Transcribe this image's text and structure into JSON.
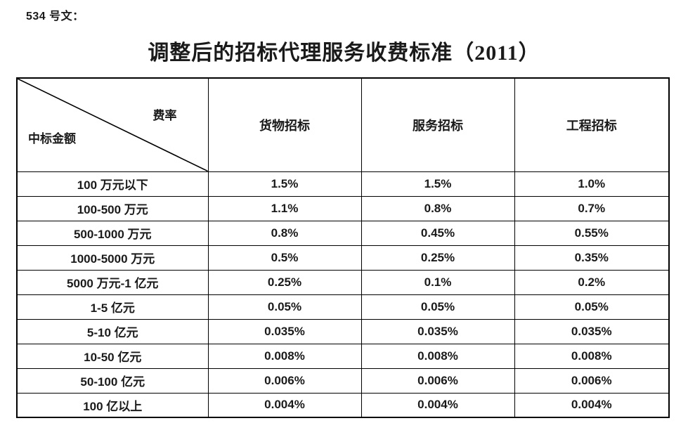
{
  "page": {
    "doc_label": "534 号文：",
    "title": "调整后的招标代理服务收费标准（2011）"
  },
  "table": {
    "corner": {
      "top_right_label": "费率",
      "bottom_left_label": "中标金额"
    },
    "column_headers": [
      "货物招标",
      "服务招标",
      "工程招标"
    ],
    "rows": [
      {
        "label": "100 万元以下",
        "values": [
          "1.5%",
          "1.5%",
          "1.0%"
        ]
      },
      {
        "label": "100-500 万元",
        "values": [
          "1.1%",
          "0.8%",
          "0.7%"
        ]
      },
      {
        "label": "500-1000 万元",
        "values": [
          "0.8%",
          "0.45%",
          "0.55%"
        ]
      },
      {
        "label": "1000-5000 万元",
        "values": [
          "0.5%",
          "0.25%",
          "0.35%"
        ]
      },
      {
        "label": "5000 万元-1 亿元",
        "values": [
          "0.25%",
          "0.1%",
          "0.2%"
        ]
      },
      {
        "label": "1-5 亿元",
        "values": [
          "0.05%",
          "0.05%",
          "0.05%"
        ]
      },
      {
        "label": "5-10 亿元",
        "values": [
          "0.035%",
          "0.035%",
          "0.035%"
        ]
      },
      {
        "label": "10-50 亿元",
        "values": [
          "0.008%",
          "0.008%",
          "0.008%"
        ]
      },
      {
        "label": "50-100 亿元",
        "values": [
          "0.006%",
          "0.006%",
          "0.006%"
        ]
      },
      {
        "label": "100 亿以上",
        "values": [
          "0.004%",
          "0.004%",
          "0.004%"
        ]
      }
    ]
  },
  "colors": {
    "border": "#000000",
    "text": "#1a1a1a",
    "background": "#ffffff"
  }
}
